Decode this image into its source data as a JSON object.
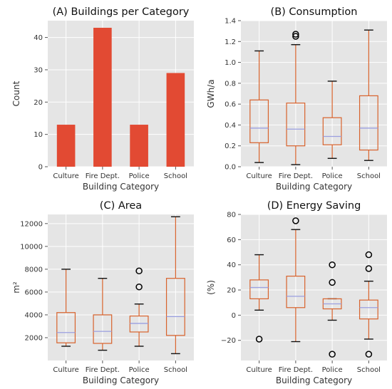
{
  "colors": {
    "panel_bg": "#e5e5e5",
    "grid": "#ffffff",
    "bar": "#e24a33",
    "box": "#d8622c",
    "median": "#9a9fe0",
    "flier": "#000000"
  },
  "chart_data": [
    {
      "id": "A",
      "type": "bar",
      "title": "(A) Buildings per Category",
      "xlabel": "Building Category",
      "ylabel": "Count",
      "categories": [
        "Culture",
        "Fire Dept.",
        "Police",
        "School"
      ],
      "values": [
        13,
        43,
        13,
        29
      ],
      "ylim": [
        0,
        45.2
      ],
      "yticks": [
        0,
        10,
        20,
        30,
        40
      ],
      "grid": true
    },
    {
      "id": "B",
      "type": "box",
      "title": "(B) Consumption",
      "xlabel": "Building Category",
      "ylabel": "GWh/a",
      "categories": [
        "Culture",
        "Fire Dept.",
        "Police",
        "School"
      ],
      "ylim": [
        0,
        1.4
      ],
      "yticks": [
        0.0,
        0.2,
        0.4,
        0.6,
        0.8,
        1.0,
        1.2,
        1.4
      ],
      "boxes": [
        {
          "whislo": 0.04,
          "q1": 0.23,
          "med": 0.37,
          "q3": 0.64,
          "whishi": 1.11,
          "fliers": []
        },
        {
          "whislo": 0.02,
          "q1": 0.2,
          "med": 0.36,
          "q3": 0.61,
          "whishi": 1.17,
          "fliers": [
            1.25,
            1.27
          ]
        },
        {
          "whislo": 0.08,
          "q1": 0.21,
          "med": 0.29,
          "q3": 0.47,
          "whishi": 0.82,
          "fliers": []
        },
        {
          "whislo": 0.06,
          "q1": 0.16,
          "med": 0.37,
          "q3": 0.68,
          "whishi": 1.31,
          "fliers": []
        }
      ],
      "grid": true
    },
    {
      "id": "C",
      "type": "box",
      "title": "(C) Area",
      "xlabel": "Building Category",
      "ylabel": "m²",
      "categories": [
        "Culture",
        "Fire Dept.",
        "Police",
        "School"
      ],
      "ylim": [
        0,
        12800
      ],
      "yticks": [
        2000,
        4000,
        6000,
        8000,
        10000,
        12000
      ],
      "boxes": [
        {
          "whislo": 1250,
          "q1": 1550,
          "med": 2450,
          "q3": 4200,
          "whishi": 8000,
          "fliers": []
        },
        {
          "whislo": 900,
          "q1": 1500,
          "med": 2550,
          "q3": 4000,
          "whishi": 7200,
          "fliers": []
        },
        {
          "whislo": 1250,
          "q1": 2500,
          "med": 3250,
          "q3": 3900,
          "whishi": 4950,
          "fliers": [
            6450,
            7850
          ]
        },
        {
          "whislo": 600,
          "q1": 2200,
          "med": 3850,
          "q3": 7200,
          "whishi": 12600,
          "fliers": []
        }
      ],
      "grid": true
    },
    {
      "id": "D",
      "type": "box",
      "title": "(D) Energy Saving",
      "xlabel": "Building Category",
      "ylabel": "(%)",
      "categories": [
        "Culture",
        "Fire Dept.",
        "Police",
        "School"
      ],
      "ylim": [
        -36,
        80
      ],
      "yticks": [
        -20,
        0,
        20,
        40,
        60,
        80
      ],
      "boxes": [
        {
          "whislo": 4,
          "q1": 13,
          "med": 22,
          "q3": 28,
          "whishi": 48,
          "fliers": [
            -19
          ]
        },
        {
          "whislo": -21,
          "q1": 6,
          "med": 15,
          "q3": 31,
          "whishi": 68,
          "fliers": [
            75
          ]
        },
        {
          "whislo": -4,
          "q1": 5,
          "med": 9,
          "q3": 13,
          "whishi": 13,
          "fliers": [
            -31,
            26,
            40
          ]
        },
        {
          "whislo": -19,
          "q1": -3,
          "med": 6,
          "q3": 12,
          "whishi": 27,
          "fliers": [
            -31,
            37,
            48
          ]
        }
      ],
      "grid": true
    }
  ]
}
